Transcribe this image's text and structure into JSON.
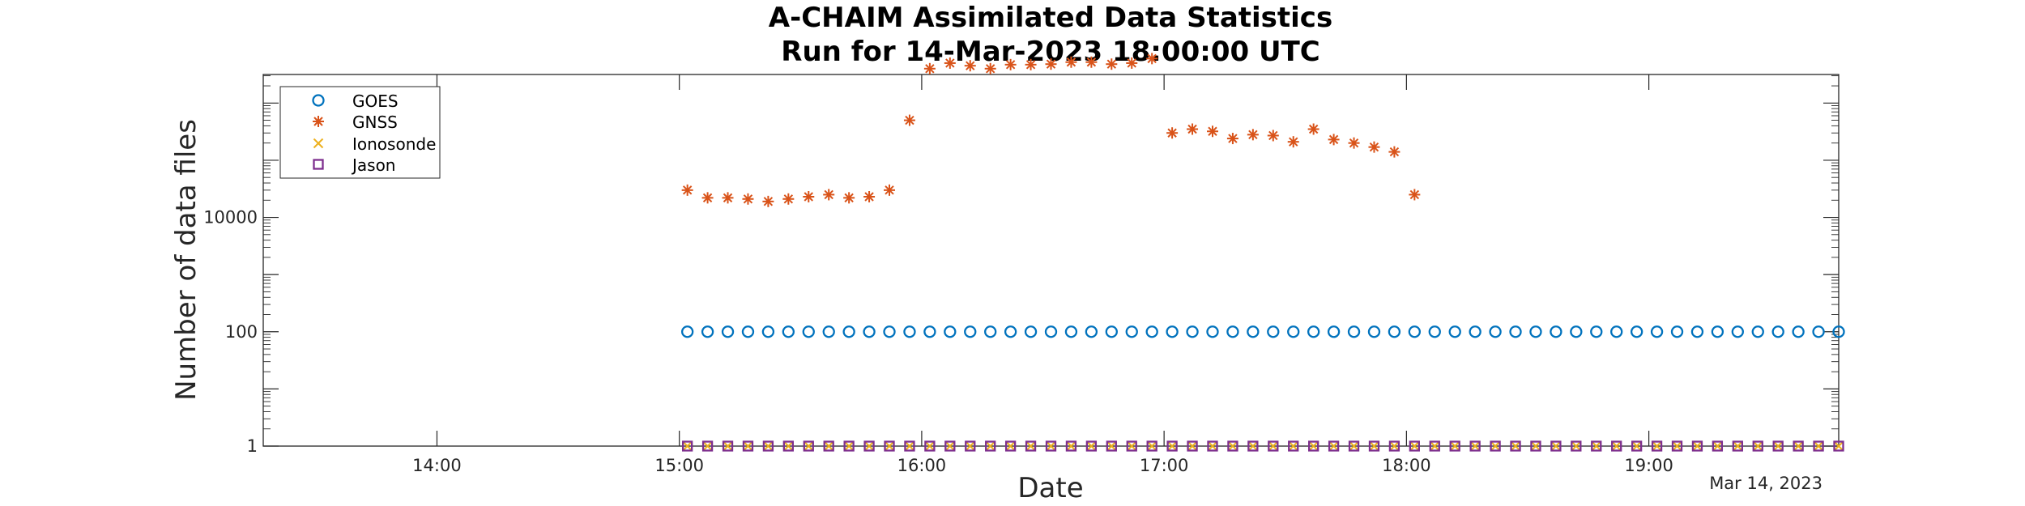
{
  "chart_data": {
    "type": "scatter",
    "title": "A-CHAIM Assimilated Data Statistics",
    "subtitle": "Run for 14-Mar-2023 18:00:00 UTC",
    "xlabel": "Date",
    "ylabel": "Number of data files",
    "x_secondary_label": "Mar 14, 2023",
    "y_scale": "log",
    "x_ticks": [
      "14:00",
      "15:00",
      "16:00",
      "17:00",
      "18:00",
      "19:00"
    ],
    "y_ticks": [
      "1",
      "100",
      "10000"
    ],
    "x_range": [
      "13:17",
      "19:47"
    ],
    "y_range_log10": [
      0,
      6.5
    ],
    "legend_position": "top-left",
    "grid": false,
    "colors": {
      "GOES": "#0072BD",
      "GNSS": "#D95319",
      "Ionosonde": "#EDB120",
      "Jason": "#7E2F8E"
    },
    "series": [
      {
        "name": "GOES",
        "marker": "circle",
        "x": [
          "15:02",
          "15:07",
          "15:12",
          "15:17",
          "15:22",
          "15:27",
          "15:32",
          "15:37",
          "15:42",
          "15:47",
          "15:52",
          "15:57",
          "16:02",
          "16:07",
          "16:12",
          "16:17",
          "16:22",
          "16:27",
          "16:32",
          "16:37",
          "16:42",
          "16:47",
          "16:52",
          "16:57",
          "17:02",
          "17:07",
          "17:12",
          "17:17",
          "17:22",
          "17:27",
          "17:32",
          "17:37",
          "17:42",
          "17:47",
          "17:52",
          "17:57",
          "18:02",
          "18:07",
          "18:12",
          "18:17",
          "18:22",
          "18:27",
          "18:32",
          "18:37",
          "18:42",
          "18:47",
          "18:52",
          "18:57",
          "19:02",
          "19:07",
          "19:12",
          "19:17",
          "19:22",
          "19:27",
          "19:32",
          "19:37",
          "19:42",
          "19:47"
        ],
        "y": [
          100,
          100,
          100,
          100,
          100,
          100,
          100,
          100,
          100,
          100,
          100,
          100,
          100,
          100,
          100,
          100,
          100,
          100,
          100,
          100,
          100,
          100,
          100,
          100,
          100,
          100,
          100,
          100,
          100,
          100,
          100,
          100,
          100,
          100,
          100,
          100,
          100,
          100,
          100,
          100,
          100,
          100,
          100,
          100,
          100,
          100,
          100,
          100,
          100,
          100,
          100,
          100,
          100,
          100,
          100,
          100,
          100,
          100
        ]
      },
      {
        "name": "GNSS",
        "marker": "asterisk",
        "x": [
          "15:02",
          "15:07",
          "15:12",
          "15:17",
          "15:22",
          "15:27",
          "15:32",
          "15:37",
          "15:42",
          "15:47",
          "15:52",
          "15:57",
          "16:02",
          "16:07",
          "16:12",
          "16:17",
          "16:22",
          "16:27",
          "16:32",
          "16:37",
          "16:42",
          "16:47",
          "16:52",
          "16:57",
          "17:02",
          "17:07",
          "17:12",
          "17:17",
          "17:22",
          "17:27",
          "17:32",
          "17:37",
          "17:42",
          "17:47",
          "17:52",
          "17:57",
          "18:02"
        ],
        "y": [
          30000,
          22000,
          22000,
          21000,
          19000,
          21000,
          23000,
          25000,
          22000,
          23000,
          30000,
          500000,
          4000000,
          5000000,
          4500000,
          4000000,
          4700000,
          4700000,
          4800000,
          5200000,
          5200000,
          4800000,
          5000000,
          6000000,
          300000,
          350000,
          320000,
          240000,
          280000,
          270000,
          210000,
          350000,
          230000,
          200000,
          170000,
          140000,
          25000
        ]
      },
      {
        "name": "Ionosonde",
        "marker": "x",
        "x": [
          "15:02",
          "15:07",
          "15:12",
          "15:17",
          "15:22",
          "15:27",
          "15:32",
          "15:37",
          "15:42",
          "15:47",
          "15:52",
          "15:57",
          "16:02",
          "16:07",
          "16:12",
          "16:17",
          "16:22",
          "16:27",
          "16:32",
          "16:37",
          "16:42",
          "16:47",
          "16:52",
          "16:57",
          "17:02",
          "17:07",
          "17:12",
          "17:17",
          "17:22",
          "17:27",
          "17:32",
          "17:37",
          "17:42",
          "17:47",
          "17:52",
          "17:57",
          "18:02",
          "18:07",
          "18:12",
          "18:17",
          "18:22",
          "18:27",
          "18:32",
          "18:37",
          "18:42",
          "18:47",
          "18:52",
          "18:57",
          "19:02",
          "19:07",
          "19:12",
          "19:17",
          "19:22",
          "19:27",
          "19:32",
          "19:37",
          "19:42",
          "19:47"
        ],
        "y": [
          1,
          1,
          1,
          1,
          1,
          1,
          1,
          1,
          1,
          1,
          1,
          1,
          1,
          1,
          1,
          1,
          1,
          1,
          1,
          1,
          1,
          1,
          1,
          1,
          1,
          1,
          1,
          1,
          1,
          1,
          1,
          1,
          1,
          1,
          1,
          1,
          1,
          1,
          1,
          1,
          1,
          1,
          1,
          1,
          1,
          1,
          1,
          1,
          1,
          1,
          1,
          1,
          1,
          1,
          1,
          1,
          1,
          1
        ]
      },
      {
        "name": "Jason",
        "marker": "square",
        "x": [
          "15:02",
          "15:07",
          "15:12",
          "15:17",
          "15:22",
          "15:27",
          "15:32",
          "15:37",
          "15:42",
          "15:47",
          "15:52",
          "15:57",
          "16:02",
          "16:07",
          "16:12",
          "16:17",
          "16:22",
          "16:27",
          "16:32",
          "16:37",
          "16:42",
          "16:47",
          "16:52",
          "16:57",
          "17:02",
          "17:07",
          "17:12",
          "17:17",
          "17:22",
          "17:27",
          "17:32",
          "17:37",
          "17:42",
          "17:47",
          "17:52",
          "17:57",
          "18:02",
          "18:07",
          "18:12",
          "18:17",
          "18:22",
          "18:27",
          "18:32",
          "18:37",
          "18:42",
          "18:47",
          "18:52",
          "18:57",
          "19:02",
          "19:07",
          "19:12",
          "19:17",
          "19:22",
          "19:27",
          "19:32",
          "19:37",
          "19:42",
          "19:47"
        ],
        "y": [
          1,
          1,
          1,
          1,
          1,
          1,
          1,
          1,
          1,
          1,
          1,
          1,
          1,
          1,
          1,
          1,
          1,
          1,
          1,
          1,
          1,
          1,
          1,
          1,
          1,
          1,
          1,
          1,
          1,
          1,
          1,
          1,
          1,
          1,
          1,
          1,
          1,
          1,
          1,
          1,
          1,
          1,
          1,
          1,
          1,
          1,
          1,
          1,
          1,
          1,
          1,
          1,
          1,
          1,
          1,
          1,
          1,
          1
        ]
      }
    ]
  }
}
